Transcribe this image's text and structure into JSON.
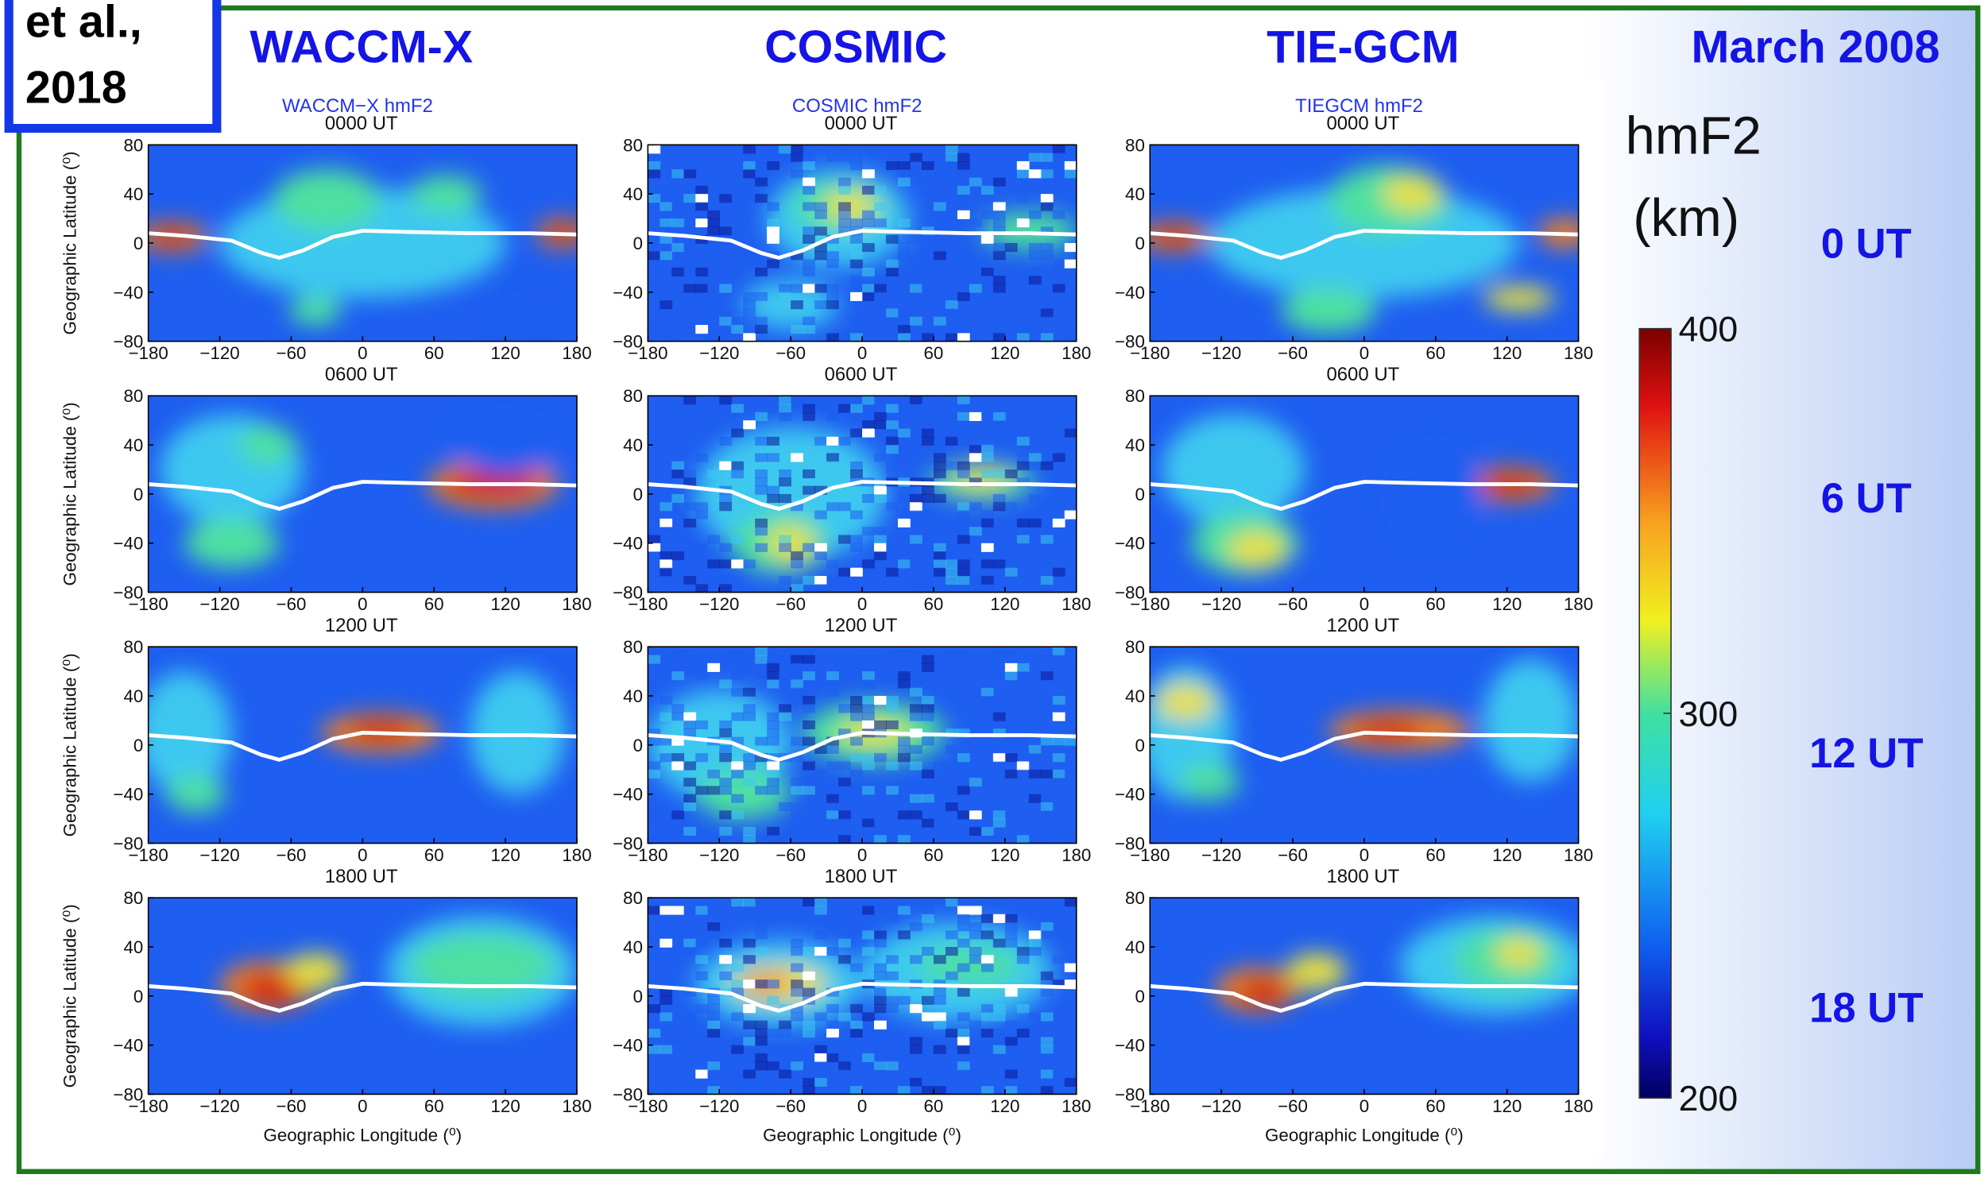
{
  "header": {
    "citation_line1": "et al.,",
    "citation_line2": "2018",
    "date": "March 2008"
  },
  "column_titles": [
    "WACCM-X",
    "COSMIC",
    "TIE-GCM"
  ],
  "panel_titles": [
    "WACCM−X  hmF2",
    "COSMIC  hmF2",
    "TIEGCM hmF2"
  ],
  "times": [
    "0000 UT",
    "0600 UT",
    "1200 UT",
    "1800 UT"
  ],
  "row_labels": [
    "0 UT",
    "6 UT",
    "12 UT",
    "18 UT"
  ],
  "y_axis_label": "Geographic Latitude (⁰)",
  "x_axis_label": "Geographic Longitude (⁰)",
  "xlim": [
    -180,
    180
  ],
  "xticks": [
    {
      "value": -180,
      "label": "−180"
    },
    {
      "value": -120,
      "label": "−120"
    },
    {
      "value": -60,
      "label": "−60"
    },
    0,
    60,
    120,
    180
  ],
  "ylim": [
    -80,
    80
  ],
  "yticks": [
    {
      "value": -80,
      "label": "−80"
    },
    {
      "value": -40,
      "label": "−40"
    },
    0,
    40,
    80
  ],
  "colorbar": {
    "title": "hmF2",
    "unit": "(km)",
    "lim": [
      200,
      400
    ],
    "ticks": [
      200,
      300,
      400
    ]
  }
}
